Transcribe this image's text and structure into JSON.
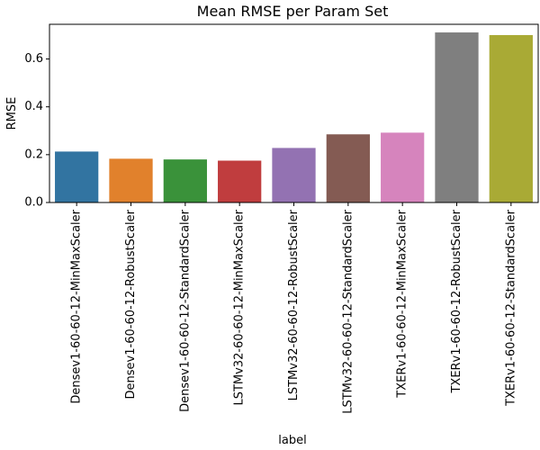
{
  "chart_data": {
    "type": "bar",
    "title": "Mean RMSE per Param Set",
    "xlabel": "label",
    "ylabel": "RMSE",
    "categories": [
      "Densev1-60-60-12-MinMaxScaler",
      "Densev1-60-60-12-RobustScaler",
      "Densev1-60-60-12-StandardScaler",
      "LSTMv32-60-60-12-MinMaxScaler",
      "LSTMv32-60-60-12-RobustScaler",
      "LSTMv32-60-60-12-StandardScaler",
      "TXERv1-60-60-12-MinMaxScaler",
      "TXERv1-60-60-12-RobustScaler",
      "TXERv1-60-60-12-StandardScaler"
    ],
    "values": [
      0.213,
      0.183,
      0.18,
      0.175,
      0.228,
      0.285,
      0.292,
      0.711,
      0.7
    ],
    "colors": [
      "#3274a1",
      "#e1812c",
      "#3a923a",
      "#c03d3e",
      "#9372b2",
      "#845b53",
      "#d684bd",
      "#7f7f7f",
      "#a9aa35"
    ],
    "ylim": [
      0,
      0.745
    ],
    "yticks": [
      0.0,
      0.2,
      0.4,
      0.6
    ],
    "ytick_labels": [
      "0.0",
      "0.2",
      "0.4",
      "0.6"
    ],
    "grid": false,
    "legend": "none"
  }
}
